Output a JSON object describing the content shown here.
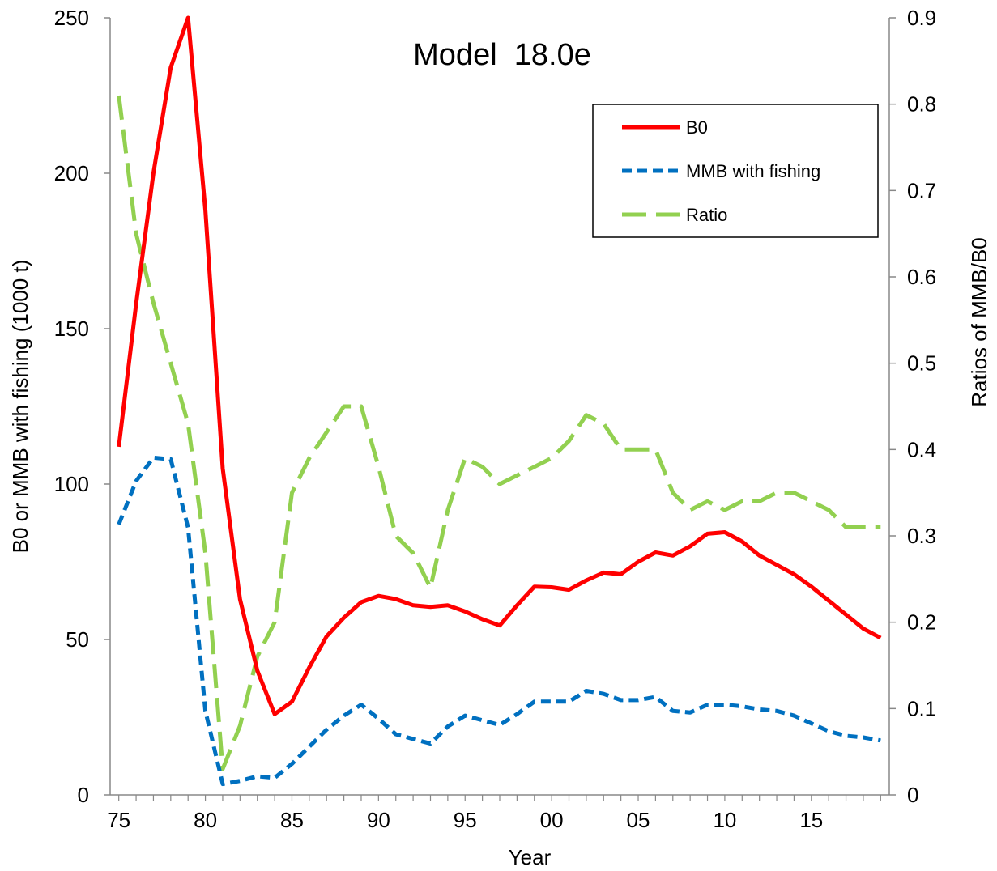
{
  "chart_data": {
    "type": "line",
    "title": "Model  18.0e",
    "xlabel": "Year",
    "ylabel": "B0 or MMB with fishing (1000 t)",
    "y2label": "Ratios of MMB/B0",
    "x": [
      1975,
      1976,
      1977,
      1978,
      1979,
      1980,
      1981,
      1982,
      1983,
      1984,
      1985,
      1986,
      1987,
      1988,
      1989,
      1990,
      1991,
      1992,
      1993,
      1994,
      1995,
      1996,
      1997,
      1998,
      1999,
      2000,
      2001,
      2002,
      2003,
      2004,
      2005,
      2006,
      2007,
      2008,
      2009,
      2010,
      2011,
      2012,
      2013,
      2014,
      2015,
      2016,
      2017,
      2018,
      2019
    ],
    "xlim": [
      1974.5,
      2019.5
    ],
    "x_ticks": [
      "75",
      "80",
      "85",
      "90",
      "95",
      "00",
      "05",
      "10",
      "15"
    ],
    "x_tick_years": [
      1975,
      1980,
      1985,
      1990,
      1995,
      2000,
      2005,
      2010,
      2015
    ],
    "ylim": [
      0,
      250
    ],
    "y_ticks": [
      "0",
      "50",
      "100",
      "150",
      "200",
      "250"
    ],
    "y2lim": [
      0,
      0.9
    ],
    "y2_ticks": [
      "0",
      "0.1",
      "0.2",
      "0.3",
      "0.4",
      "0.5",
      "0.6",
      "0.7",
      "0.8",
      "0.9"
    ],
    "grid": false,
    "legend_position": "top-right",
    "series": [
      {
        "name": "B0",
        "axis": "left",
        "color": "#ff0000",
        "dash": "solid",
        "values": [
          112,
          158,
          200,
          234,
          250,
          188,
          105,
          63,
          40,
          26,
          30,
          41,
          51,
          57,
          62,
          64,
          63,
          61,
          60.5,
          61,
          59,
          56.5,
          54.5,
          61,
          67,
          66.8,
          66,
          69,
          71.5,
          71,
          75,
          78,
          77,
          80,
          84,
          84.5,
          81.5,
          77,
          74,
          71,
          67,
          62.5,
          58,
          53.5,
          50.5
        ]
      },
      {
        "name": "MMB with fishing",
        "axis": "left",
        "color": "#0070c0",
        "dash": "short",
        "values": [
          87,
          101,
          108.5,
          108,
          86,
          27,
          3.5,
          4.5,
          6,
          5.5,
          10,
          15.5,
          21,
          25.5,
          29,
          24.5,
          19.5,
          18,
          16.5,
          22,
          25.5,
          24,
          22.5,
          26,
          30,
          30,
          30,
          33.5,
          32.5,
          30.5,
          30.5,
          31.5,
          27,
          26.5,
          29,
          29,
          28.5,
          27.5,
          27,
          25.5,
          23,
          20.5,
          19,
          18.5,
          17.5
        ]
      },
      {
        "name": "Ratio",
        "axis": "right",
        "color": "#92d050",
        "dash": "long",
        "values": [
          0.81,
          0.65,
          0.57,
          0.5,
          0.43,
          0.28,
          0.03,
          0.08,
          0.16,
          0.2,
          0.35,
          0.39,
          0.42,
          0.45,
          0.45,
          0.38,
          0.3,
          0.28,
          0.24,
          0.33,
          0.39,
          0.38,
          0.36,
          0.37,
          0.38,
          0.39,
          0.41,
          0.44,
          0.43,
          0.4,
          0.4,
          0.4,
          0.35,
          0.33,
          0.34,
          0.33,
          0.34,
          0.34,
          0.35,
          0.35,
          0.34,
          0.33,
          0.31,
          0.31,
          0.31
        ]
      }
    ]
  },
  "colors": {
    "axis": "#888888",
    "b0": "#ff0000",
    "mmb": "#0070c0",
    "ratio": "#92d050"
  }
}
